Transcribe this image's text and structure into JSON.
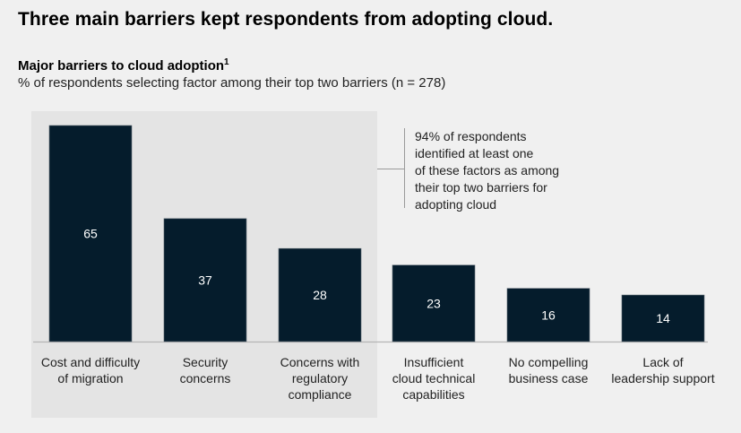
{
  "header": {
    "title": "Three main barriers kept respondents from adopting cloud.",
    "subtitle": "Major barriers to cloud adoption",
    "footnote_marker": "1",
    "description": "% of respondents selecting factor among their top two barriers (n = 278)"
  },
  "annotation": {
    "text": "94% of respondents identified at least one of these factors as among their top two barriers for adopting cloud",
    "lines": [
      "94% of respondents",
      "identified at least one",
      "of these factors as among",
      "their top two barriers for",
      "adopting cloud"
    ]
  },
  "colors": {
    "bar": "#051c2c",
    "highlight": "#e4e4e4",
    "background": "#f0f0f0",
    "bar_label": "#ffffff"
  },
  "chart_data": {
    "type": "bar",
    "title": "Major barriers to cloud adoption",
    "subtitle": "% of respondents selecting factor among their top two barriers (n = 278)",
    "categories": [
      "Cost and difficulty of migration",
      "Security concerns",
      "Concerns with regulatory compliance",
      "Insufficient cloud technical capabilities",
      "No compelling business case",
      "Lack of leadership support"
    ],
    "category_lines": [
      [
        "Cost and difficulty",
        "of migration"
      ],
      [
        "Security",
        "concerns"
      ],
      [
        "Concerns with",
        "regulatory",
        "compliance"
      ],
      [
        "Insufficient",
        "cloud technical",
        "capabilities"
      ],
      [
        "No compelling",
        "business case"
      ],
      [
        "Lack of",
        "leadership support"
      ]
    ],
    "values": [
      65,
      37,
      28,
      23,
      16,
      14
    ],
    "highlighted_categories": [
      0,
      1,
      2
    ],
    "xlabel": "",
    "ylabel": "",
    "ylim": [
      0,
      65
    ],
    "grid": false,
    "legend": "none"
  }
}
